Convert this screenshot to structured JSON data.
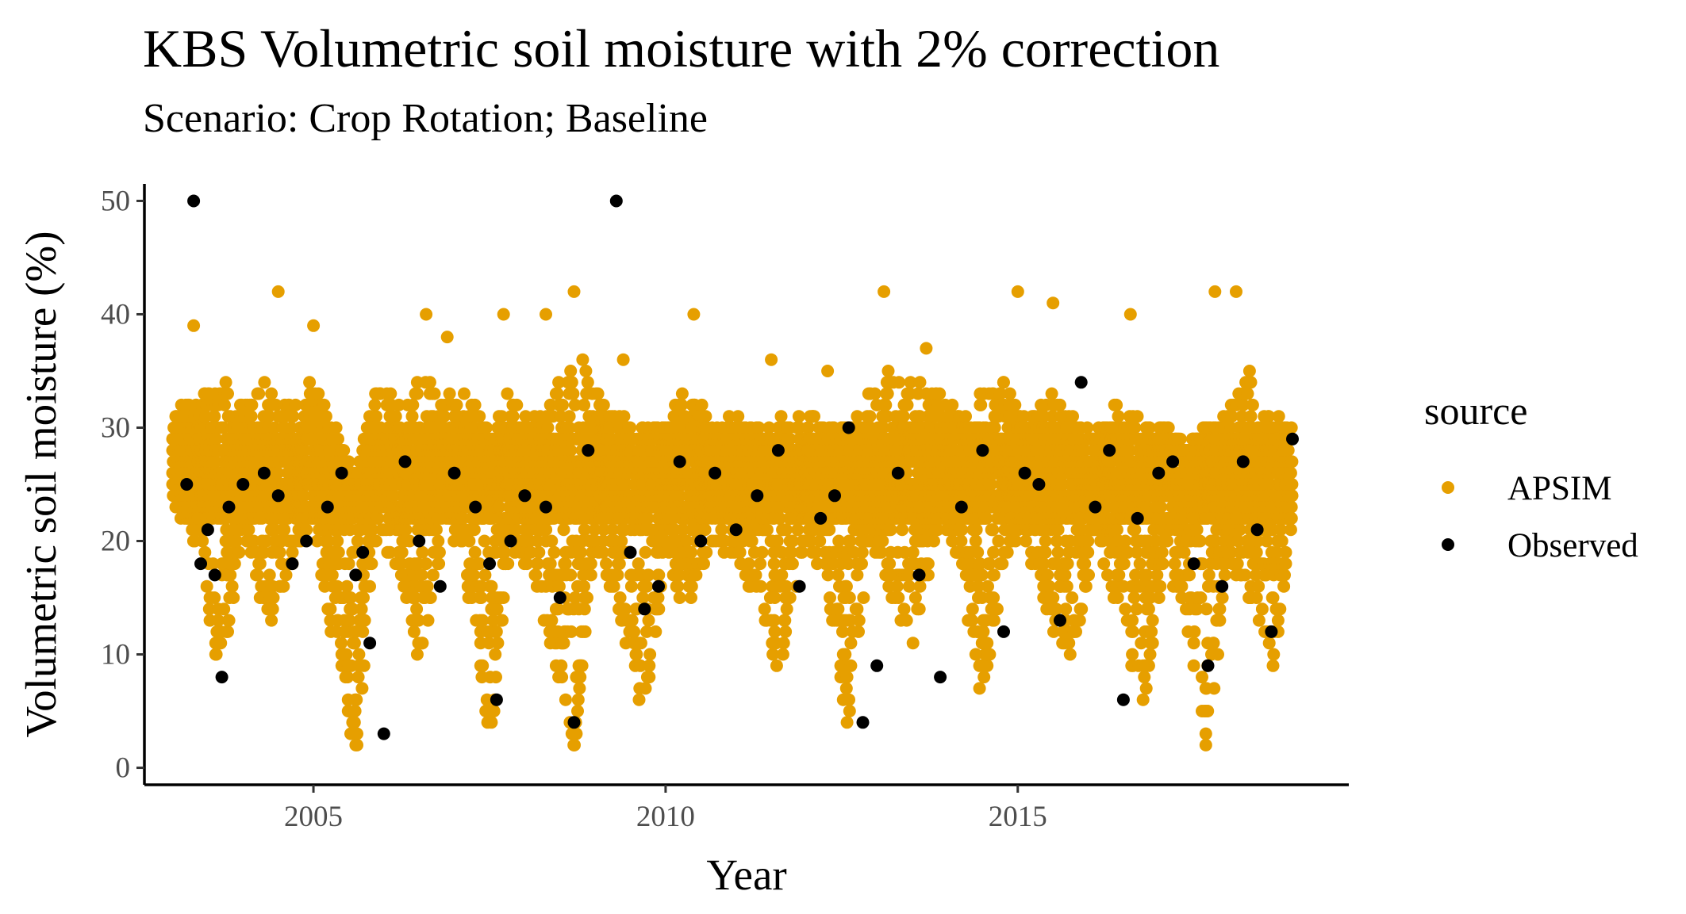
{
  "chart_data": {
    "type": "scatter",
    "title": "KBS Volumetric soil moisture with 2% correction",
    "subtitle": "Scenario: Crop Rotation; Baseline",
    "xlabel": "Year",
    "ylabel": "Volumetric soil moisture (%)",
    "xlim": [
      2002.6,
      2019.7
    ],
    "ylim": [
      -1.5,
      51.5
    ],
    "x_ticks": [
      "2005",
      "2010",
      "2015"
    ],
    "y_ticks": [
      "0",
      "10",
      "20",
      "30",
      "40",
      "50"
    ],
    "grid": false,
    "legend": {
      "title": "source",
      "placement": "right",
      "entries": [
        {
          "label": "APSIM",
          "color": "#E69F00"
        },
        {
          "label": "Observed",
          "color": "#000000"
        }
      ]
    },
    "series": [
      {
        "name": "APSIM",
        "color": "#E69F00",
        "band_x": [
          2003.0,
          2003.4,
          2003.7,
          2004.0,
          2004.3,
          2004.7,
          2005.0,
          2005.3,
          2005.6,
          2005.9,
          2006.2,
          2006.5,
          2006.9,
          2007.2,
          2007.5,
          2007.8,
          2008.1,
          2008.4,
          2008.7,
          2009.0,
          2009.4,
          2009.7,
          2010.0,
          2010.3,
          2010.7,
          2011.0,
          2011.3,
          2011.6,
          2012.0,
          2012.3,
          2012.6,
          2012.9,
          2013.2,
          2013.5,
          2013.9,
          2014.2,
          2014.5,
          2014.8,
          2015.1,
          2015.5,
          2015.8,
          2016.1,
          2016.4,
          2016.8,
          2017.1,
          2017.4,
          2017.7,
          2018.0,
          2018.3,
          2018.6,
          2018.9
        ],
        "band_low": [
          24,
          18,
          7,
          22,
          11,
          17,
          22,
          10,
          1,
          20,
          18,
          9,
          22,
          15,
          1,
          20,
          17,
          10,
          1,
          20,
          12,
          4,
          18,
          14,
          20,
          18,
          14,
          8,
          20,
          15,
          3,
          20,
          15,
          10,
          22,
          17,
          4,
          18,
          20,
          12,
          9,
          21,
          14,
          5,
          19,
          12,
          1,
          19,
          14,
          7,
          22
        ],
        "band_high": [
          31,
          33,
          35,
          32,
          34,
          32,
          34,
          30,
          25,
          34,
          32,
          34,
          33,
          33,
          30,
          33,
          31,
          33,
          38,
          33,
          31,
          30,
          30,
          34,
          30,
          31,
          30,
          31,
          32,
          30,
          30,
          33,
          35,
          35,
          33,
          31,
          33,
          34,
          31,
          33,
          31,
          29,
          33,
          31,
          30,
          28,
          30,
          32,
          35,
          32,
          30
        ],
        "extra_x": [
          2003.3,
          2004.5,
          2005.0,
          2006.6,
          2006.9,
          2007.7,
          2008.3,
          2008.7,
          2009.4,
          2010.4,
          2011.5,
          2012.3,
          2013.1,
          2013.7,
          2015.0,
          2015.5,
          2016.6,
          2017.8,
          2018.1
        ],
        "extra_y": [
          39,
          42,
          39,
          40,
          38,
          40,
          40,
          42,
          36,
          40,
          36,
          35,
          42,
          37,
          42,
          41,
          40,
          42,
          42
        ]
      },
      {
        "name": "Observed",
        "color": "#000000",
        "x": [
          2003.2,
          2003.3,
          2003.4,
          2003.5,
          2003.6,
          2003.7,
          2003.8,
          2004.0,
          2004.3,
          2004.5,
          2004.7,
          2004.9,
          2005.2,
          2005.4,
          2005.6,
          2005.7,
          2005.8,
          2006.0,
          2006.3,
          2006.5,
          2006.8,
          2007.0,
          2007.3,
          2007.5,
          2007.6,
          2007.8,
          2008.0,
          2008.3,
          2008.5,
          2008.7,
          2008.9,
          2009.3,
          2009.5,
          2009.7,
          2009.9,
          2010.2,
          2010.5,
          2010.7,
          2011.0,
          2011.3,
          2011.6,
          2011.9,
          2012.2,
          2012.4,
          2012.6,
          2012.8,
          2013.0,
          2013.3,
          2013.6,
          2013.9,
          2014.2,
          2014.5,
          2014.8,
          2015.1,
          2015.3,
          2015.6,
          2015.9,
          2016.1,
          2016.3,
          2016.5,
          2016.7,
          2017.0,
          2017.2,
          2017.5,
          2017.7,
          2017.9,
          2018.2,
          2018.4,
          2018.6,
          2018.9
        ],
        "y": [
          25,
          50,
          18,
          21,
          17,
          8,
          23,
          25,
          26,
          24,
          18,
          20,
          23,
          26,
          17,
          19,
          11,
          3,
          27,
          20,
          16,
          26,
          23,
          18,
          6,
          20,
          24,
          23,
          15,
          4,
          28,
          50,
          19,
          14,
          16,
          27,
          20,
          26,
          21,
          24,
          28,
          16,
          22,
          24,
          30,
          4,
          9,
          26,
          17,
          8,
          23,
          28,
          12,
          26,
          25,
          13,
          34,
          23,
          28,
          6,
          22,
          26,
          27,
          18,
          9,
          16,
          27,
          21,
          12,
          29
        ]
      }
    ]
  }
}
